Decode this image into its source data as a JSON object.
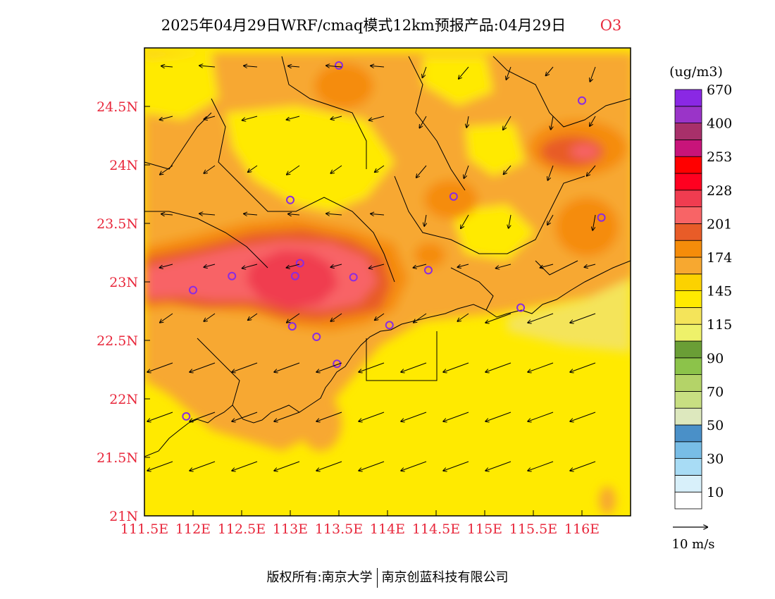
{
  "title": {
    "main": "2025年04月29日WRF/cmaq模式12km预报产品:04月29日",
    "species": "O3",
    "species_color": "#e8283c"
  },
  "map": {
    "lon_ticks": [
      "111.5E",
      "112E",
      "112.5E",
      "113E",
      "113.5E",
      "114E",
      "114.5E",
      "115E",
      "115.5E",
      "116E"
    ],
    "lat_ticks": [
      "24.5N",
      "24N",
      "23.5N",
      "23N",
      "22.5N",
      "22N",
      "21.5N",
      "21N"
    ],
    "tick_label_color": "#e8283c",
    "lon_range": [
      111.5,
      116.5
    ],
    "lat_range": [
      21.0,
      25.0
    ],
    "stations": [
      [
        113.5,
        24.85
      ],
      [
        116.0,
        24.55
      ],
      [
        113.0,
        23.7
      ],
      [
        114.68,
        23.73
      ],
      [
        116.2,
        23.55
      ],
      [
        112.4,
        23.05
      ],
      [
        113.1,
        23.16
      ],
      [
        113.05,
        23.05
      ],
      [
        113.65,
        23.04
      ],
      [
        114.42,
        23.1
      ],
      [
        112.0,
        22.93
      ],
      [
        115.37,
        22.78
      ],
      [
        113.02,
        22.62
      ],
      [
        113.27,
        22.53
      ],
      [
        114.02,
        22.63
      ],
      [
        113.48,
        22.3
      ],
      [
        111.93,
        21.85
      ]
    ],
    "station_color": "#8a2be2"
  },
  "colorbar": {
    "unit": "(ug/m3)",
    "colors": [
      "#ffffff",
      "#d8f0fa",
      "#a8dcf5",
      "#78bde6",
      "#4a90c8",
      "#dde8be",
      "#c8df82",
      "#b4d368",
      "#8cc34a",
      "#6a9e36",
      "#eef16a",
      "#f4e45a",
      "#ffea00",
      "#fcd200",
      "#f7a830",
      "#f58c0a",
      "#e85c28",
      "#f86466",
      "#f03c50",
      "#ff0020",
      "#ff0000",
      "#c8147a",
      "#a8306a",
      "#9a34c8",
      "#8a28e4"
    ],
    "labels": [
      "10",
      "30",
      "50",
      "70",
      "90",
      "115",
      "145",
      "174",
      "201",
      "228",
      "253",
      "400",
      "670"
    ]
  },
  "wind_legend": {
    "label": "10 m/s"
  },
  "footer": {
    "left": "版权所有:南京大学",
    "right": "南京创蓝科技有限公司"
  }
}
